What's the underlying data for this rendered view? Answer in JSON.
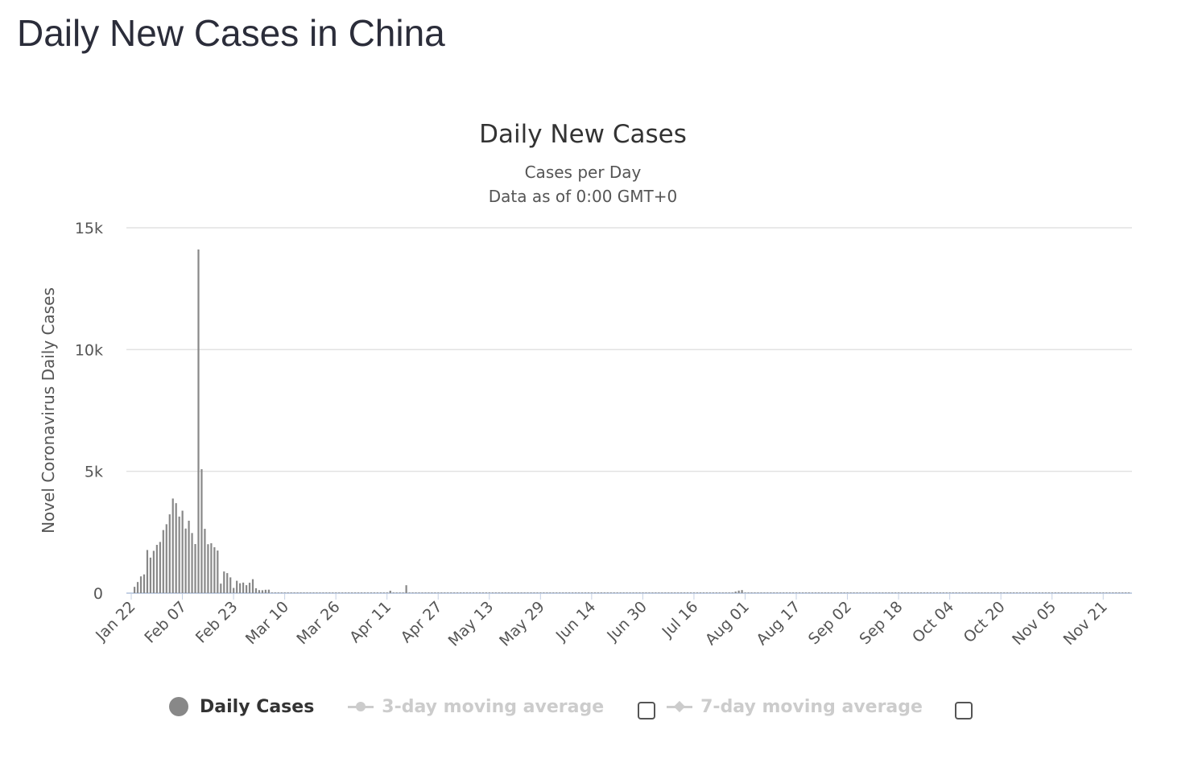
{
  "page": {
    "title": "Daily New Cases in China"
  },
  "chart_data": {
    "type": "bar",
    "title": "Daily New Cases",
    "subtitle_lines": [
      "Cases per Day",
      "Data as of 0:00 GMT+0"
    ],
    "ylabel": "Novel Coronavirus Daily Cases",
    "xlabel": "",
    "ylim": [
      0,
      15000
    ],
    "yticks": [
      {
        "value": 0,
        "label": "0"
      },
      {
        "value": 5000,
        "label": "5k"
      },
      {
        "value": 10000,
        "label": "10k"
      },
      {
        "value": 15000,
        "label": "15k"
      }
    ],
    "x_start_date": "Jan 22",
    "x_days": 313,
    "xtick_labels": [
      "Jan 22",
      "Feb 07",
      "Feb 23",
      "Mar 10",
      "Mar 26",
      "Apr 11",
      "Apr 27",
      "May 13",
      "May 29",
      "Jun 14",
      "Jun 30",
      "Jul 16",
      "Aug 01",
      "Aug 17",
      "Sep 02",
      "Sep 18",
      "Oct 04",
      "Oct 20",
      "Nov 05",
      "Nov 21"
    ],
    "xtick_interval_days": 16,
    "grid": true,
    "series": [
      {
        "name": "Daily Cases",
        "color": "#888888",
        "first_day_index": 1,
        "values": [
          259,
          457,
          688,
          769,
          1771,
          1459,
          1737,
          1982,
          2102,
          2590,
          2829,
          3235,
          3884,
          3694,
          3143,
          3385,
          2652,
          2973,
          2467,
          2015,
          14108,
          5090,
          2641,
          2008,
          2048,
          1886,
          1749,
          391,
          889,
          823,
          648,
          214,
          508,
          406,
          433,
          327,
          427,
          573,
          202,
          125,
          119,
          139,
          143
        ],
        "later_points": [
          {
            "day_index": 81,
            "value": 99
          },
          {
            "day_index": 86,
            "value": 325
          },
          {
            "day_index": 189,
            "value": 64
          },
          {
            "day_index": 190,
            "value": 105
          },
          {
            "day_index": 191,
            "value": 127
          }
        ],
        "default_later_value": 25
      },
      {
        "name": "3-day moving average",
        "visible": false
      },
      {
        "name": "7-day moving average",
        "visible": false
      }
    ],
    "legend_position": "bottom"
  }
}
